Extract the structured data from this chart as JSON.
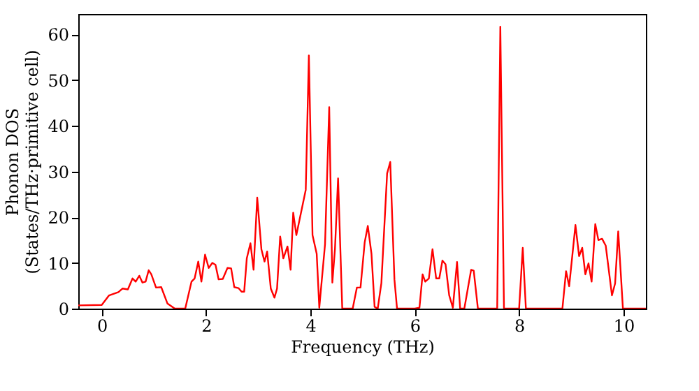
{
  "chart_data": {
    "type": "line",
    "xlabel": "Frequency (THz)",
    "ylabel": "Phonon DOS\n(States/THz·primitive cell)",
    "xlim": [
      -0.45,
      10.43
    ],
    "ylim": [
      0,
      64.5
    ],
    "xticks": [
      0,
      2,
      4,
      6,
      8,
      10
    ],
    "yticks": [
      0,
      10,
      20,
      30,
      40,
      50,
      60
    ],
    "grid": false,
    "marker": "none",
    "line_style": "solid",
    "series": [
      {
        "color": "#ff0000",
        "x": [
          -0.45,
          0.0,
          0.14,
          0.32,
          0.4,
          0.5,
          0.59,
          0.65,
          0.72,
          0.78,
          0.84,
          0.9,
          0.95,
          1.04,
          1.14,
          1.26,
          1.4,
          1.6,
          1.72,
          1.78,
          1.85,
          1.91,
          1.98,
          2.05,
          2.12,
          2.18,
          2.24,
          2.32,
          2.41,
          2.48,
          2.54,
          2.62,
          2.68,
          2.73,
          2.78,
          2.85,
          2.91,
          2.98,
          3.06,
          3.12,
          3.17,
          3.24,
          3.31,
          3.36,
          3.42,
          3.48,
          3.56,
          3.62,
          3.67,
          3.73,
          3.91,
          3.97,
          4.04,
          4.12,
          4.17,
          4.28,
          4.36,
          4.42,
          4.47,
          4.53,
          4.61,
          4.81,
          4.89,
          4.96,
          5.04,
          5.1,
          5.17,
          5.23,
          5.29,
          5.36,
          5.47,
          5.53,
          5.61,
          5.66,
          6.0,
          6.09,
          6.15,
          6.2,
          6.27,
          6.34,
          6.41,
          6.47,
          6.53,
          6.59,
          6.66,
          6.73,
          6.81,
          6.87,
          6.95,
          7.08,
          7.13,
          7.21,
          7.58,
          7.64,
          7.71,
          8.0,
          8.07,
          8.13,
          8.83,
          8.9,
          8.96,
          9.08,
          9.15,
          9.21,
          9.27,
          9.33,
          9.39,
          9.46,
          9.52,
          9.59,
          9.66,
          9.78,
          9.84,
          9.9,
          9.99,
          10.43
        ],
        "values": [
          0.7,
          0.8,
          2.9,
          3.6,
          4.4,
          4.2,
          6.6,
          5.9,
          7.2,
          5.7,
          5.9,
          8.4,
          7.5,
          4.6,
          4.7,
          1.1,
          0,
          0,
          5.9,
          6.6,
          10.3,
          5.9,
          11.8,
          8.9,
          10,
          9.6,
          6.4,
          6.5,
          8.9,
          8.8,
          4.7,
          4.5,
          3.7,
          3.7,
          11,
          14.3,
          8.5,
          24.3,
          13,
          10.3,
          12.5,
          4.4,
          2.4,
          4.4,
          15.8,
          11,
          13.6,
          8.5,
          21,
          16.1,
          26,
          55.4,
          16.1,
          12,
          0.2,
          14.1,
          44.1,
          5.7,
          13,
          28.5,
          0,
          0,
          4.6,
          4.6,
          14.5,
          18.1,
          12,
          0.4,
          0,
          5.6,
          29.6,
          32.1,
          6.4,
          0,
          0,
          0.2,
          7.5,
          5.9,
          6.6,
          13,
          6.6,
          6.6,
          10.5,
          9.7,
          2.9,
          0.2,
          10.2,
          0,
          0,
          8.5,
          8.3,
          0,
          0,
          61.7,
          0,
          0,
          13.3,
          0,
          0,
          8.2,
          4.9,
          18.3,
          11.5,
          13.3,
          7.5,
          9.9,
          5.9,
          18.5,
          15,
          15.3,
          13.8,
          2.9,
          5.5,
          16.9,
          0,
          0
        ]
      }
    ]
  }
}
